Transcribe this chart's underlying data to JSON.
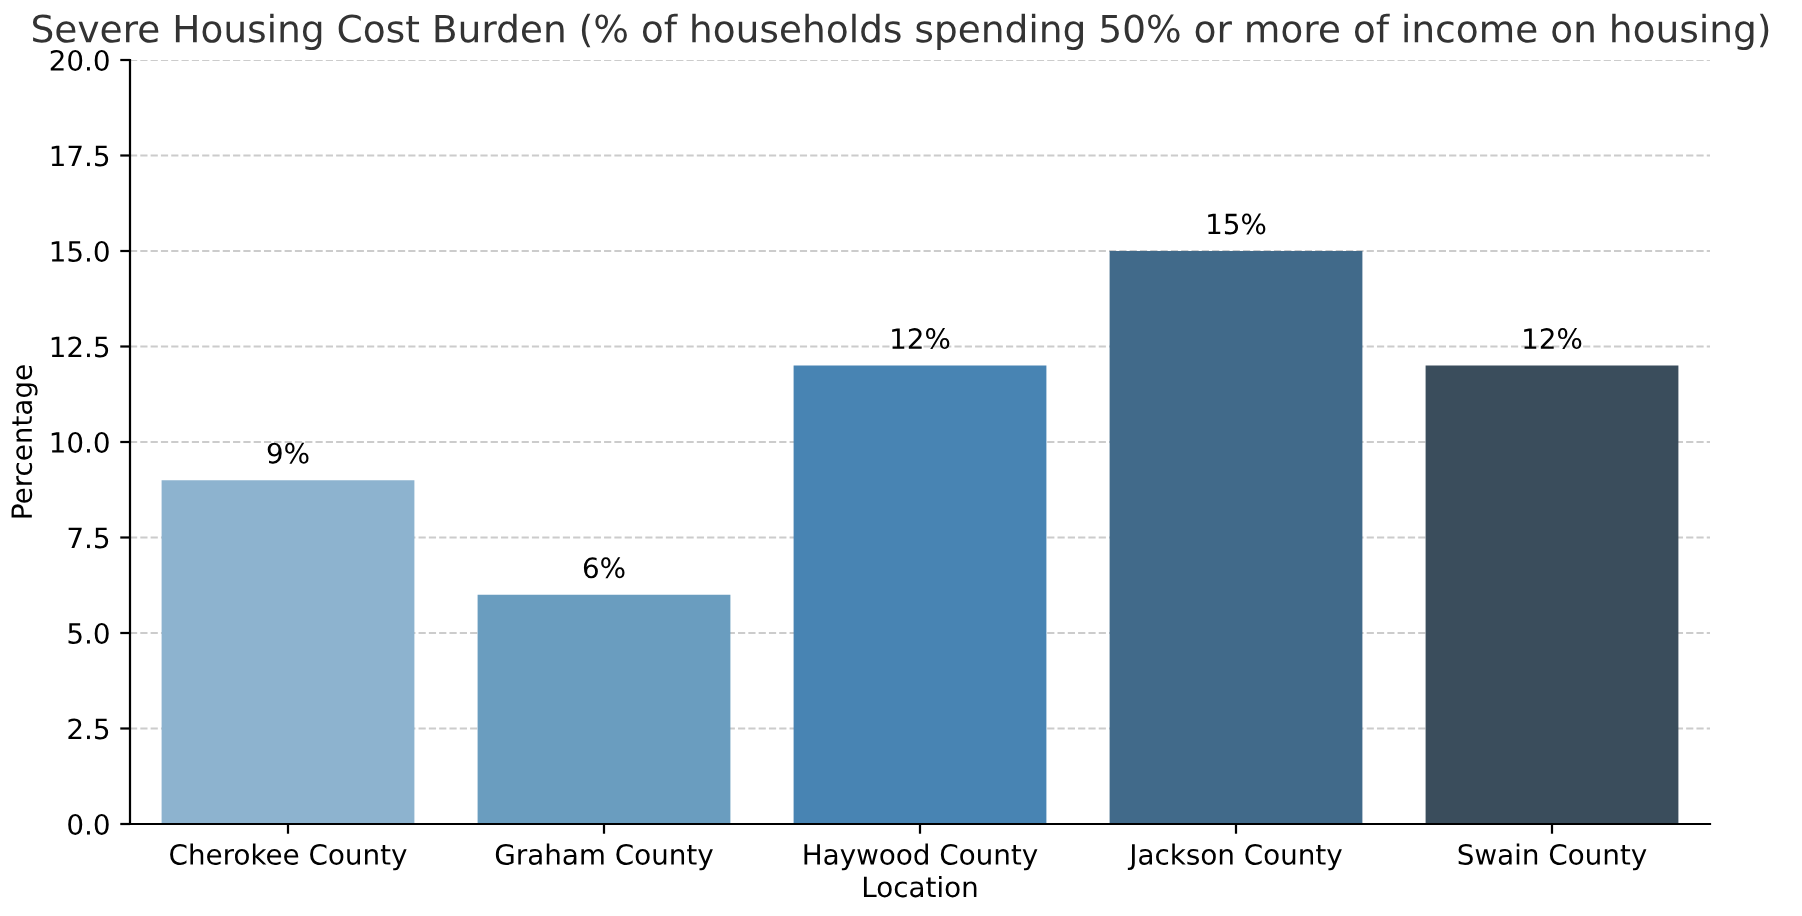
{
  "chart_data": {
    "type": "bar",
    "title": "Severe Housing Cost Burden (% of households spending 50% or more of income on housing)",
    "xlabel": "Location",
    "ylabel": "Percentage",
    "categories": [
      "Cherokee County",
      "Graham County",
      "Haywood County",
      "Jackson County",
      "Swain County"
    ],
    "values": [
      9,
      6,
      12,
      15,
      12
    ],
    "colors": [
      "#8db3cf",
      "#6a9dbf",
      "#4884b3",
      "#416a8a",
      "#3a4d5c"
    ],
    "value_labels": [
      "9%",
      "6%",
      "12%",
      "15%",
      "12%"
    ],
    "ylim": [
      0,
      20
    ],
    "yticks": [
      {
        "value": 0,
        "label": "0.0"
      },
      {
        "value": 2.5,
        "label": "2.5"
      },
      {
        "value": 5,
        "label": "5.0"
      },
      {
        "value": 7.5,
        "label": "7.5"
      },
      {
        "value": 10,
        "label": "10.0"
      },
      {
        "value": 12.5,
        "label": "12.5"
      },
      {
        "value": 15,
        "label": "15.0"
      },
      {
        "value": 17.5,
        "label": "17.5"
      },
      {
        "value": 20,
        "label": "20.0"
      }
    ],
    "grid": "y"
  }
}
